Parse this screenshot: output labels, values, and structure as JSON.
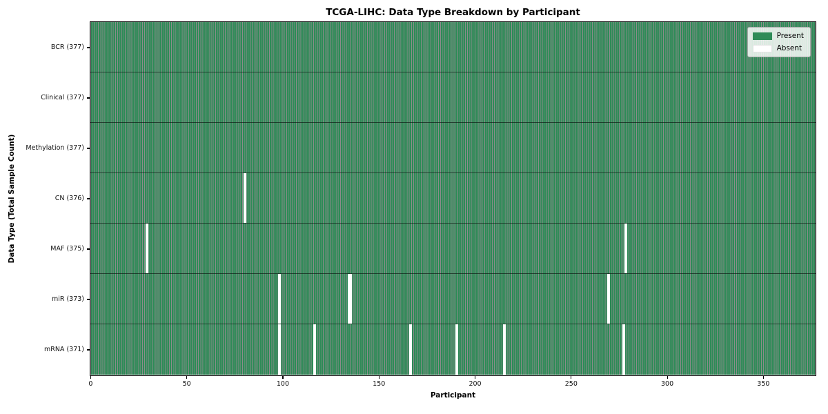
{
  "title": "TCGA-LIHC: Data Type Breakdown by Participant",
  "axes": {
    "xlabel": "Participant",
    "ylabel": "Data Type (Total Sample Count)",
    "x_ticks": [
      0,
      50,
      100,
      150,
      200,
      250,
      300,
      350
    ]
  },
  "legend": {
    "present_label": "Present",
    "absent_label": "Absent"
  },
  "colors": {
    "present": "#2e8b57",
    "absent": "#ffffff",
    "cell_edge": "rgba(0,0,0,0.45)",
    "row_divider": "rgba(0,0,0,0.55)"
  },
  "chart_data": {
    "type": "heatmap",
    "title": "TCGA-LIHC: Data Type Breakdown by Participant",
    "xlabel": "Participant",
    "ylabel": "Data Type (Total Sample Count)",
    "n_participants": 377,
    "x_ticks": [
      0,
      50,
      100,
      150,
      200,
      250,
      300,
      350
    ],
    "x_range": [
      0,
      377
    ],
    "grid": false,
    "legend_position": "upper right",
    "legend": [
      {
        "label": "Present",
        "color": "#2e8b57"
      },
      {
        "label": "Absent",
        "color": "#ffffff"
      }
    ],
    "rows": [
      {
        "data_type": "BCR",
        "label": "BCR (377)",
        "present_count": 377,
        "absent_participants": []
      },
      {
        "data_type": "Clinical",
        "label": "Clinical (377)",
        "present_count": 377,
        "absent_participants": []
      },
      {
        "data_type": "Methylation",
        "label": "Methylation (377)",
        "present_count": 377,
        "absent_participants": []
      },
      {
        "data_type": "CN",
        "label": "CN (376)",
        "present_count": 376,
        "absent_participants": [
          80
        ]
      },
      {
        "data_type": "MAF",
        "label": "MAF (375)",
        "present_count": 375,
        "absent_participants": [
          29,
          278
        ]
      },
      {
        "data_type": "miR",
        "label": "miR (373)",
        "present_count": 373,
        "absent_participants": [
          98,
          134,
          135,
          269
        ]
      },
      {
        "data_type": "mRNA",
        "label": "mRNA (371)",
        "present_count": 371,
        "absent_participants": [
          98,
          116,
          166,
          190,
          215,
          277
        ]
      }
    ]
  }
}
